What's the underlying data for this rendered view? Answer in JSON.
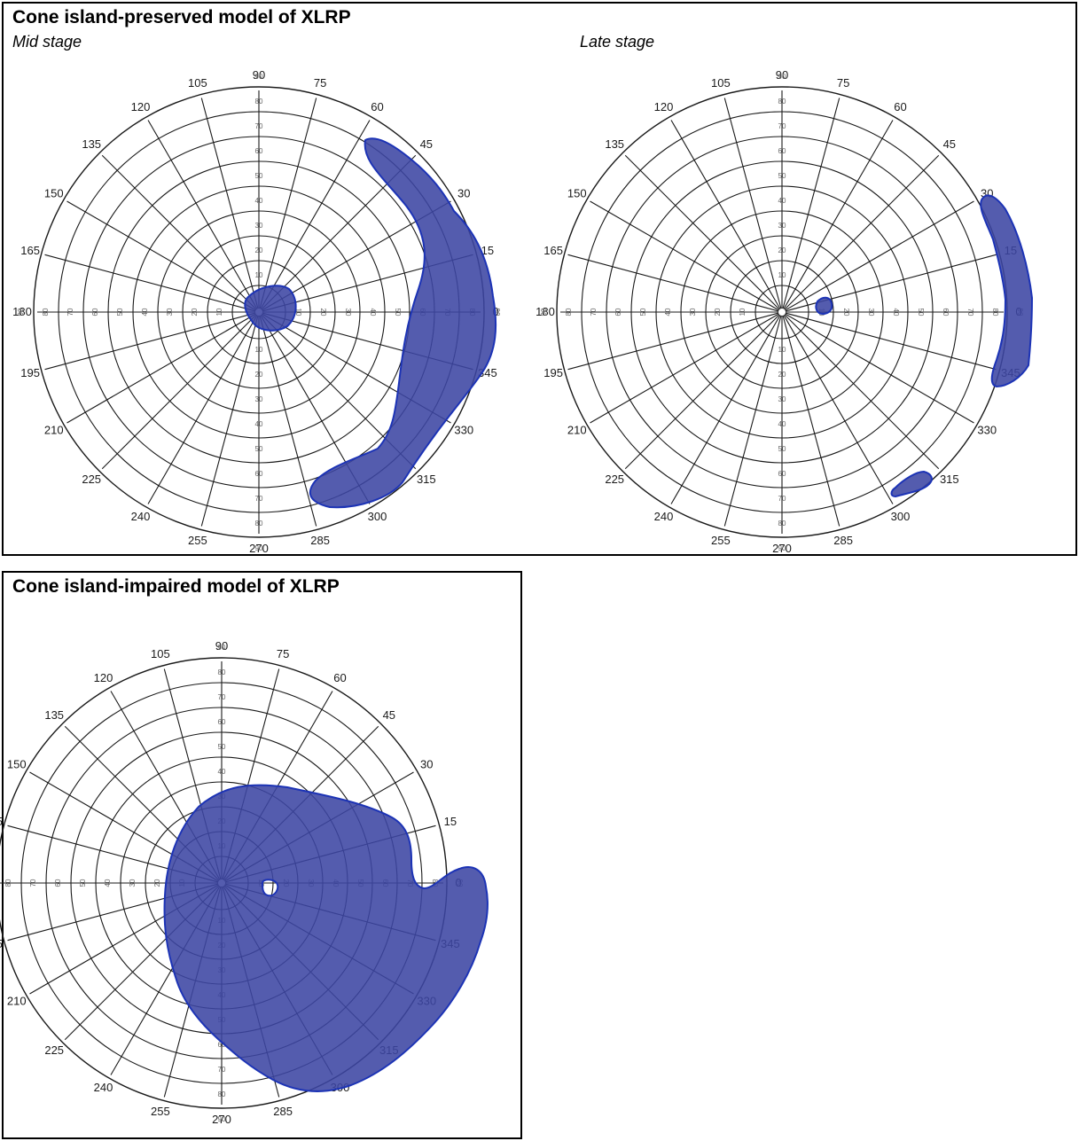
{
  "panels": {
    "preserved": {
      "title": "Cone island-preserved model of XLRP",
      "mid_label": "Mid stage",
      "late_label": "Late stage"
    },
    "impaired": {
      "title": "Cone island-impaired model of XLRP"
    }
  },
  "polar_grid": {
    "angle_labels": [
      "0",
      "15",
      "30",
      "45",
      "60",
      "75",
      "90",
      "105",
      "120",
      "135",
      "150",
      "165",
      "180",
      "195",
      "210",
      "225",
      "240",
      "255",
      "270",
      "285",
      "300",
      "315",
      "330",
      "345"
    ],
    "ring_labels": [
      "10",
      "20",
      "30",
      "40",
      "50",
      "60",
      "70",
      "80",
      "90"
    ]
  },
  "colors": {
    "field_fill": "#3c46a3",
    "field_stroke": "#1c33b5",
    "grid": "#1a1a1a"
  }
}
